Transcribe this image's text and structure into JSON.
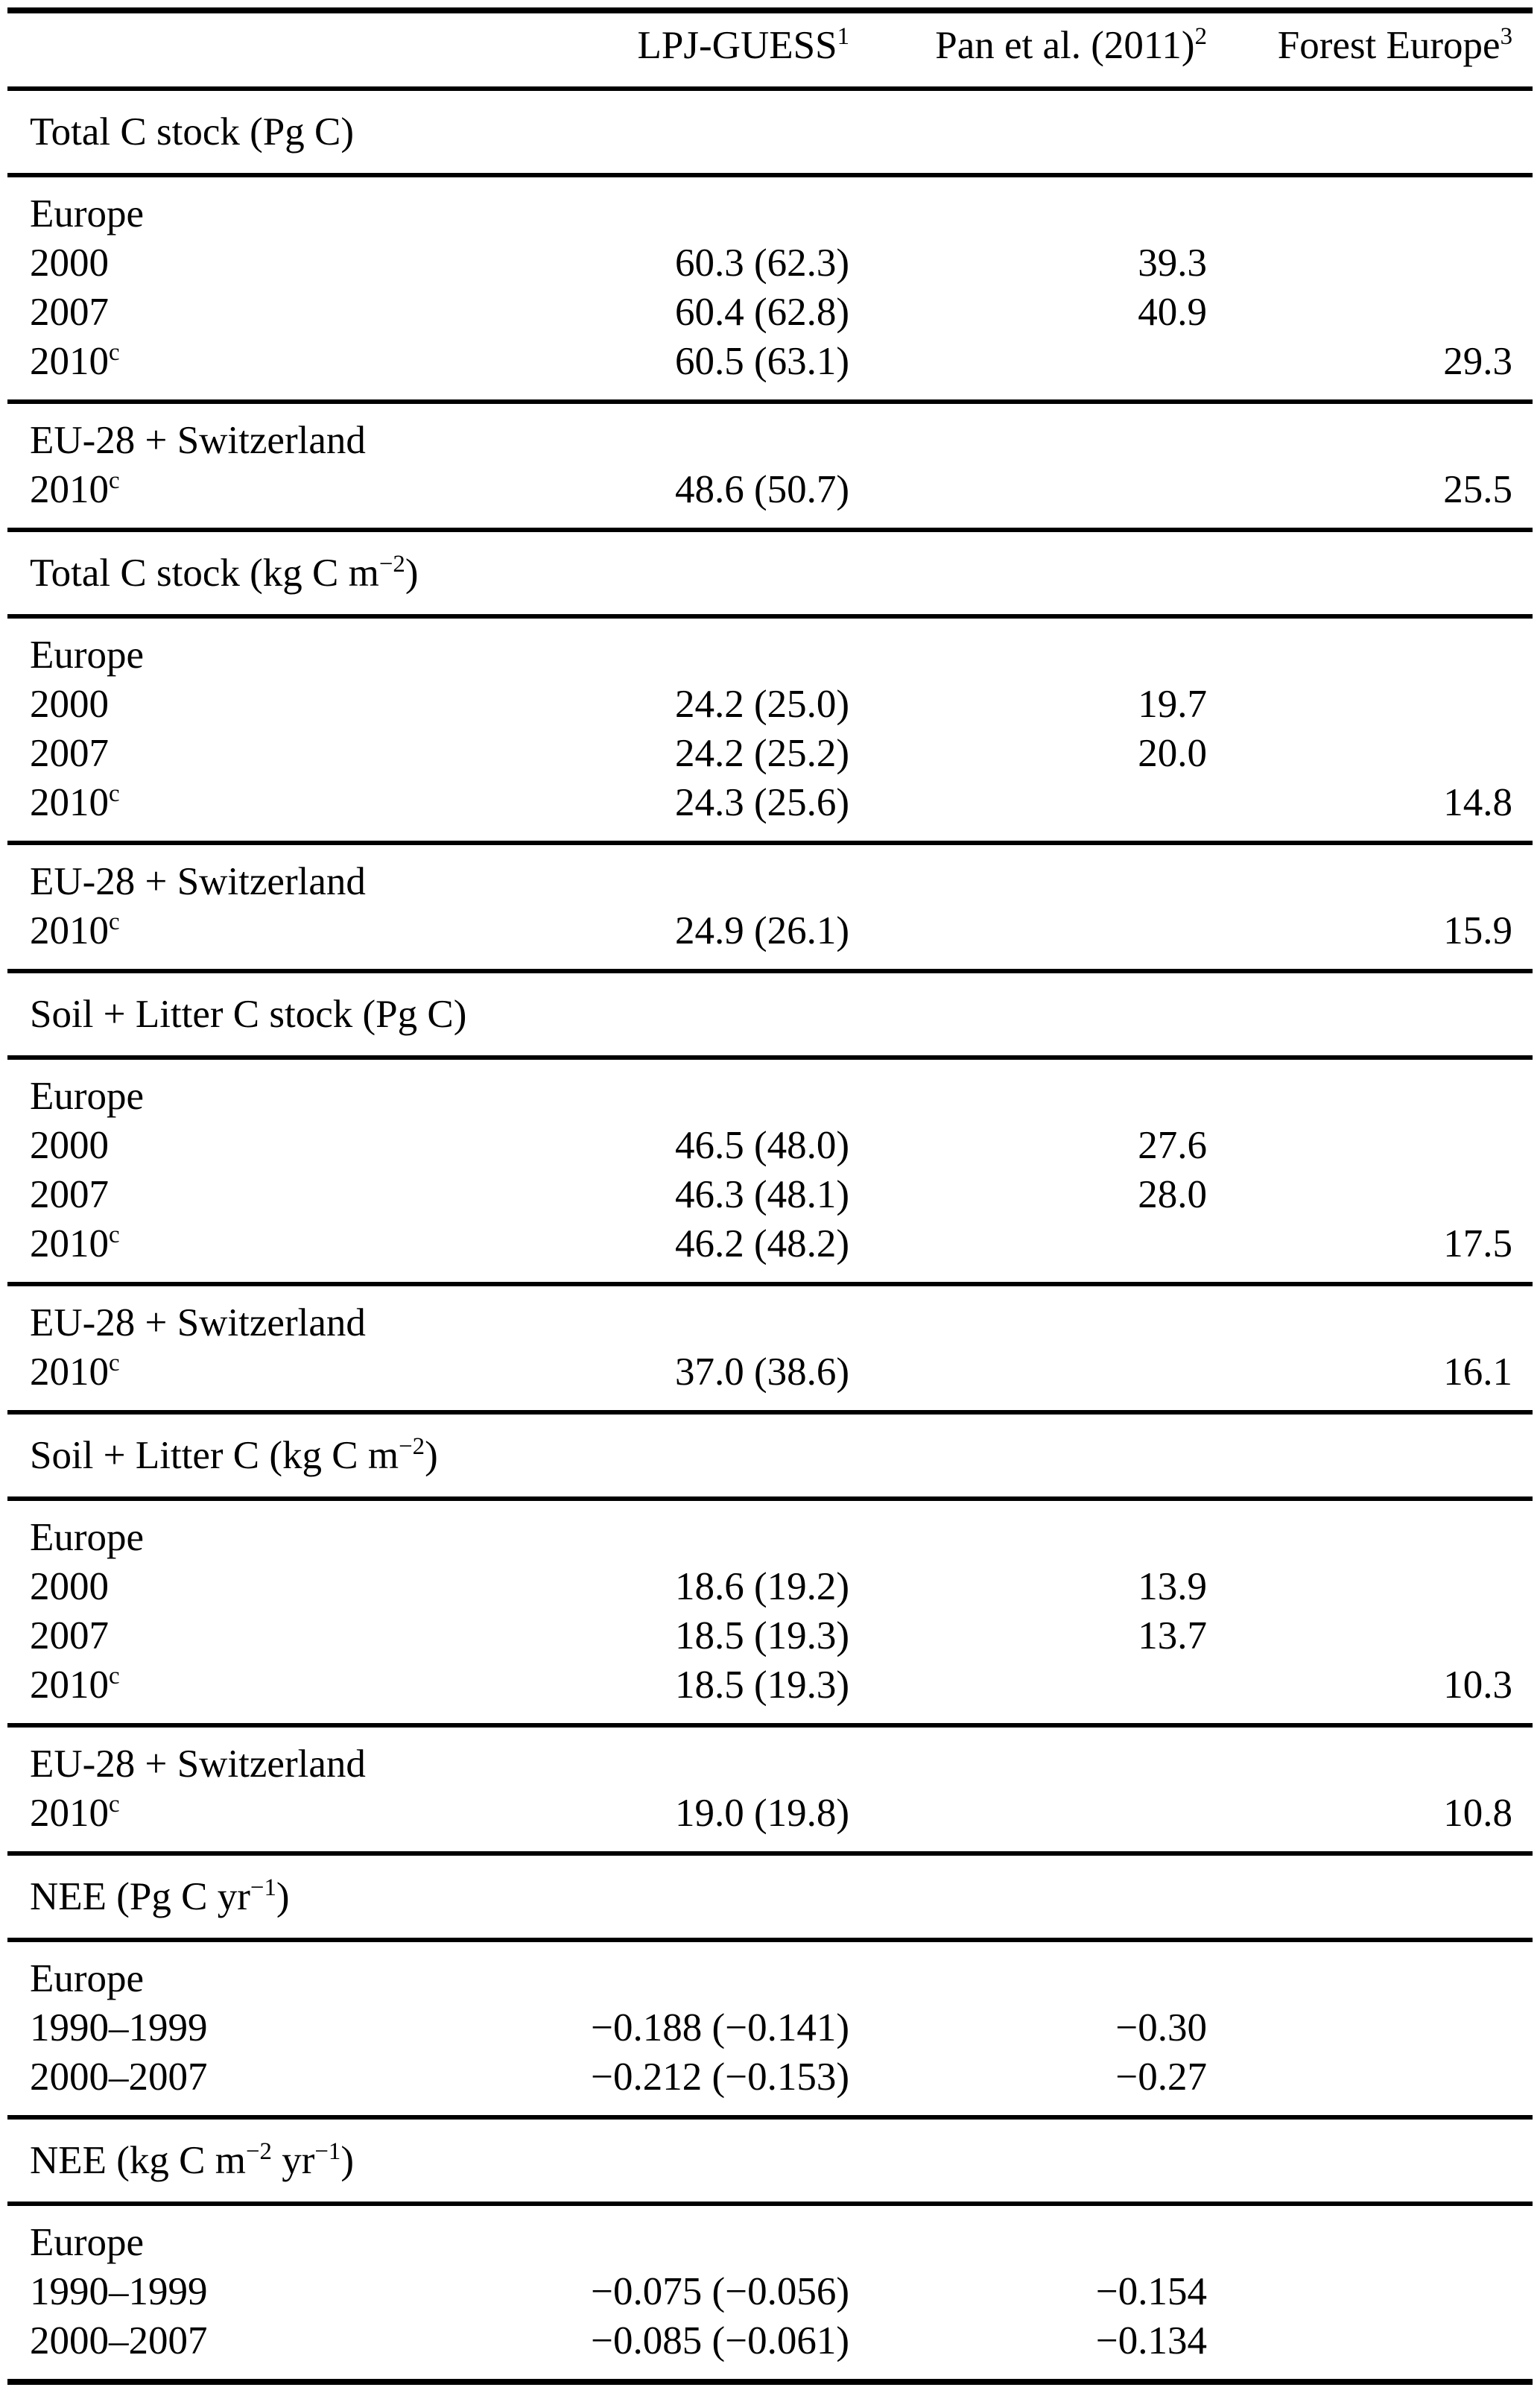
{
  "table": {
    "header": {
      "row_label": "",
      "columns": [
        {
          "label": "LPJ-GUESS",
          "sup": "1"
        },
        {
          "label": "Pan et al. (2011)",
          "sup": "2"
        },
        {
          "label": "Forest Europe",
          "sup": "3"
        }
      ]
    },
    "column_keys": [
      "lpj_guess",
      "pan_et_al_2011",
      "forest_europe"
    ],
    "sections": [
      {
        "title": "Total C stock (Pg C)",
        "groups": [
          {
            "rows": [
              {
                "label": "Europe"
              },
              {
                "label": "2000",
                "values": [
                  "60.3 (62.3)",
                  "39.3",
                  ""
                ]
              },
              {
                "label": "2007",
                "values": [
                  "60.4 (62.8)",
                  "40.9",
                  ""
                ]
              },
              {
                "label": "2010^{c}",
                "values": [
                  "60.5 (63.1)",
                  "",
                  "29.3"
                ]
              }
            ]
          },
          {
            "rows": [
              {
                "label": "EU-28 + Switzerland"
              },
              {
                "label": "2010^{c}",
                "values": [
                  "48.6 (50.7)",
                  "",
                  "25.5"
                ]
              }
            ]
          }
        ]
      },
      {
        "title": "Total C stock (kg C m^{−2})",
        "groups": [
          {
            "rows": [
              {
                "label": "Europe"
              },
              {
                "label": "2000",
                "values": [
                  "24.2 (25.0)",
                  "19.7",
                  ""
                ]
              },
              {
                "label": "2007",
                "values": [
                  "24.2 (25.2)",
                  "20.0",
                  ""
                ]
              },
              {
                "label": "2010^{c}",
                "values": [
                  "24.3 (25.6)",
                  "",
                  "14.8"
                ]
              }
            ]
          },
          {
            "rows": [
              {
                "label": "EU-28 + Switzerland"
              },
              {
                "label": "2010^{c}",
                "values": [
                  "24.9 (26.1)",
                  "",
                  "15.9"
                ]
              }
            ]
          }
        ]
      },
      {
        "title": "Soil + Litter C stock (Pg C)",
        "groups": [
          {
            "rows": [
              {
                "label": "Europe"
              },
              {
                "label": "2000",
                "values": [
                  "46.5 (48.0)",
                  "27.6",
                  ""
                ]
              },
              {
                "label": "2007",
                "values": [
                  "46.3 (48.1)",
                  "28.0",
                  ""
                ]
              },
              {
                "label": "2010^{c}",
                "values": [
                  "46.2 (48.2)",
                  "",
                  "17.5"
                ]
              }
            ]
          },
          {
            "rows": [
              {
                "label": "EU-28 + Switzerland"
              },
              {
                "label": "2010^{c}",
                "values": [
                  "37.0 (38.6)",
                  "",
                  "16.1"
                ]
              }
            ]
          }
        ]
      },
      {
        "title": "Soil + Litter C (kg C m^{−2})",
        "groups": [
          {
            "rows": [
              {
                "label": "Europe"
              },
              {
                "label": "2000",
                "values": [
                  "18.6 (19.2)",
                  "13.9",
                  ""
                ]
              },
              {
                "label": "2007",
                "values": [
                  "18.5 (19.3)",
                  "13.7",
                  ""
                ]
              },
              {
                "label": "2010^{c}",
                "values": [
                  "18.5 (19.3)",
                  "",
                  "10.3"
                ]
              }
            ]
          },
          {
            "rows": [
              {
                "label": "EU-28 + Switzerland"
              },
              {
                "label": "2010^{c}",
                "values": [
                  "19.0 (19.8)",
                  "",
                  "10.8"
                ]
              }
            ]
          }
        ]
      },
      {
        "title": "NEE (Pg C yr^{−1})",
        "groups": [
          {
            "rows": [
              {
                "label": "Europe"
              },
              {
                "label": "1990–1999",
                "values": [
                  "−0.188 (−0.141)",
                  "−0.30",
                  ""
                ]
              },
              {
                "label": "2000–2007",
                "values": [
                  "−0.212 (−0.153)",
                  "−0.27",
                  ""
                ]
              }
            ]
          }
        ]
      },
      {
        "title": "NEE (kg C m^{−2} yr^{−1})",
        "groups": [
          {
            "rows": [
              {
                "label": "Europe"
              },
              {
                "label": "1990–1999",
                "values": [
                  "−0.075 (−0.056)",
                  "−0.154",
                  ""
                ]
              },
              {
                "label": "2000–2007",
                "values": [
                  "−0.085 (−0.061)",
                  "−0.134",
                  ""
                ]
              }
            ]
          }
        ]
      }
    ]
  }
}
